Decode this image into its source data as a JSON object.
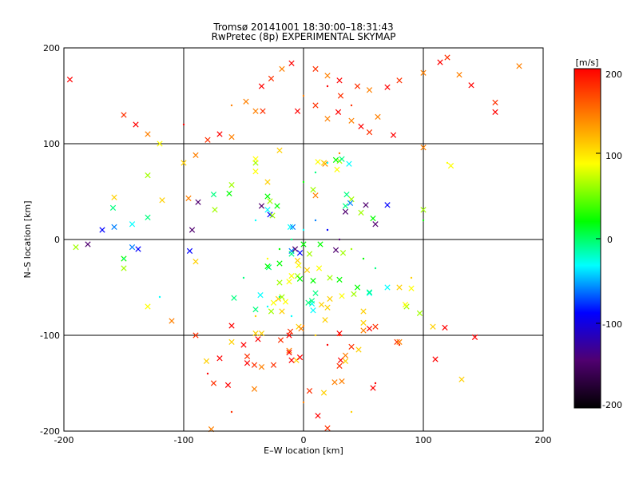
{
  "chart_data": {
    "type": "scatter",
    "title": "Tromsø 20141001 18:30:00–18:31:43",
    "subtitle": "RwPretec (8p) EXPERIMENTAL SKYMAP",
    "xlabel": "E–W location [km]",
    "ylabel": "N–S location [km]",
    "xlim": [
      -200,
      200
    ],
    "ylim": [
      -200,
      200
    ],
    "x_ticks": [
      "-200",
      "-100",
      "0",
      "100",
      "200"
    ],
    "y_ticks": [
      "-200",
      "-100",
      "0",
      "100",
      "200"
    ],
    "grid": true,
    "colorbar": {
      "label": "[m/s]",
      "range": [
        -200,
        200
      ],
      "ticks": [
        "200",
        "100",
        "0",
        "-100",
        "-200"
      ],
      "colormap": [
        "#000000",
        "#500070",
        "#0000ff",
        "#00ffff",
        "#00ff00",
        "#ffff00",
        "#ff8000",
        "#ff0000"
      ]
    },
    "series": [
      {
        "marker": "x",
        "points": [
          [
            -195,
            167
          ],
          [
            -158,
            44
          ],
          [
            -159,
            33
          ],
          [
            -130,
            67
          ],
          [
            -143,
            -8
          ],
          [
            -138,
            -10
          ],
          [
            -93,
            10
          ],
          [
            -74,
            31
          ],
          [
            -50,
            -110
          ],
          [
            -41,
            -131
          ],
          [
            -41,
            -156
          ],
          [
            -30,
            45
          ],
          [
            -28,
            26
          ],
          [
            -25,
            -66
          ],
          [
            -27,
            -75
          ],
          [
            -35,
            -98
          ],
          [
            -38,
            -104
          ],
          [
            -11,
            13
          ],
          [
            -9,
            13
          ],
          [
            -12,
            -44
          ],
          [
            -18,
            -60
          ],
          [
            -19,
            -105
          ],
          [
            -12,
            -116
          ],
          [
            -6,
            -126
          ],
          [
            -3,
            -123
          ],
          [
            -34,
            134
          ],
          [
            -40,
            134
          ],
          [
            -35,
            35
          ],
          [
            -26,
            25
          ],
          [
            -22,
            35
          ],
          [
            -21,
            -62
          ],
          [
            -15,
            -65
          ],
          [
            -12,
            -118
          ],
          [
            8,
            -43
          ],
          [
            10,
            -56
          ],
          [
            7,
            -67
          ],
          [
            15,
            -68
          ],
          [
            28,
            73
          ],
          [
            30,
            82
          ],
          [
            27,
            83
          ],
          [
            32,
            84
          ],
          [
            38,
            79
          ],
          [
            18,
            79
          ],
          [
            17,
            80
          ],
          [
            12,
            81
          ],
          [
            8,
            52
          ],
          [
            7,
            -64
          ],
          [
            18,
            -84
          ],
          [
            30,
            -98
          ],
          [
            40,
            -112
          ],
          [
            35,
            -121
          ],
          [
            50,
            -87
          ],
          [
            55,
            -93
          ],
          [
            60,
            -91
          ],
          [
            50,
            -95
          ],
          [
            60,
            16
          ],
          [
            48,
            28
          ],
          [
            58,
            22
          ],
          [
            35,
            35
          ],
          [
            40,
            42
          ],
          [
            39,
            38
          ],
          [
            36,
            47
          ],
          [
            35,
            29
          ],
          [
            100,
            31
          ],
          [
            110,
            -125
          ],
          [
            123,
            77
          ],
          [
            160,
            133
          ],
          [
            132,
            -146
          ],
          [
            143,
            -102
          ],
          [
            78,
            -107
          ],
          [
            80,
            -107
          ],
          [
            55,
            -56
          ],
          [
            50,
            -75
          ],
          [
            90,
            -51
          ],
          [
            86,
            -70
          ],
          [
            70,
            36
          ],
          [
            52,
            36
          ],
          [
            10,
            46
          ],
          [
            22,
            -62
          ],
          [
            -10,
            -38
          ],
          [
            -10,
            -126
          ],
          [
            -25,
            -131
          ],
          [
            -35,
            -133
          ],
          [
            -60,
            -107
          ],
          [
            -70,
            -124
          ],
          [
            -75,
            -150
          ],
          [
            -77,
            -198
          ],
          [
            -81,
            -127
          ],
          [
            -63,
            -152
          ],
          [
            -95,
            -12
          ],
          [
            -90,
            -23
          ],
          [
            -40,
            -98
          ],
          [
            -20,
            -45
          ],
          [
            -20,
            -25
          ],
          [
            -29,
            -29
          ],
          [
            -10,
            -12
          ],
          [
            -5,
            -22
          ],
          [
            -4,
            -27
          ],
          [
            -5,
            -38
          ],
          [
            -3,
            -41
          ],
          [
            -47,
            -129
          ],
          [
            -47,
            -122
          ],
          [
            -18,
            -75
          ],
          [
            -4,
            -91
          ],
          [
            -12,
            -100
          ],
          [
            -11,
            -96
          ],
          [
            -2,
            -93
          ],
          [
            46,
            -115
          ],
          [
            31,
            -126
          ],
          [
            30,
            -132
          ],
          [
            32,
            -148
          ],
          [
            35,
            -127
          ],
          [
            58,
            -155
          ],
          [
            5,
            -158
          ],
          [
            26,
            -149
          ],
          [
            17,
            -160
          ],
          [
            12,
            -184
          ],
          [
            20,
            -197
          ],
          [
            55,
            -55
          ],
          [
            70,
            -50
          ],
          [
            80,
            -50
          ],
          [
            85,
            -68
          ],
          [
            97,
            -77
          ],
          [
            108,
            -91
          ],
          [
            118,
            -92
          ],
          [
            27,
            -11
          ],
          [
            33,
            -14
          ],
          [
            14,
            -5
          ],
          [
            -10,
            -15
          ],
          [
            -30,
            31
          ],
          [
            -58,
            -61
          ],
          [
            -3,
            -14
          ],
          [
            -7,
            -10
          ],
          [
            5,
            -15
          ],
          [
            0,
            -5
          ],
          [
            -30,
            -28
          ],
          [
            -60,
            -90
          ],
          [
            -90,
            -100
          ],
          [
            -110,
            -85
          ],
          [
            -130,
            -70
          ],
          [
            -150,
            -30
          ],
          [
            -150,
            -20
          ],
          [
            -40,
            -73
          ],
          [
            -36,
            -58
          ],
          [
            3,
            -32
          ],
          [
            13,
            -30
          ],
          [
            22,
            -40
          ],
          [
            30,
            -42
          ],
          [
            4,
            -66
          ],
          [
            8,
            -74
          ],
          [
            20,
            -71
          ],
          [
            32,
            -59
          ],
          [
            42,
            -57
          ],
          [
            45,
            -50
          ],
          [
            -28,
            40
          ],
          [
            -30,
            60
          ],
          [
            -40,
            71
          ],
          [
            -40,
            80
          ],
          [
            -60,
            107
          ],
          [
            -70,
            110
          ],
          [
            -80,
            104
          ],
          [
            -90,
            88
          ],
          [
            -100,
            80
          ],
          [
            -120,
            100
          ],
          [
            -130,
            110
          ],
          [
            -140,
            120
          ],
          [
            -150,
            130
          ],
          [
            -48,
            144
          ],
          [
            -35,
            160
          ],
          [
            -27,
            168
          ],
          [
            -18,
            178
          ],
          [
            -10,
            184
          ],
          [
            10,
            178
          ],
          [
            20,
            171
          ],
          [
            30,
            166
          ],
          [
            45,
            160
          ],
          [
            55,
            156
          ],
          [
            70,
            159
          ],
          [
            80,
            166
          ],
          [
            100,
            174
          ],
          [
            114,
            185
          ],
          [
            120,
            190
          ],
          [
            130,
            172
          ],
          [
            140,
            161
          ],
          [
            160,
            143
          ],
          [
            180,
            181
          ],
          [
            -5,
            134
          ],
          [
            10,
            140
          ],
          [
            20,
            126
          ],
          [
            29,
            133
          ],
          [
            31,
            150
          ],
          [
            40,
            124
          ],
          [
            48,
            118
          ],
          [
            55,
            112
          ],
          [
            62,
            128
          ],
          [
            75,
            109
          ],
          [
            100,
            96
          ],
          [
            -20,
            93
          ],
          [
            -40,
            84
          ],
          [
            -60,
            57
          ],
          [
            -62,
            48
          ],
          [
            -75,
            47
          ],
          [
            -88,
            39
          ],
          [
            -96,
            43
          ],
          [
            -118,
            41
          ],
          [
            -130,
            23
          ],
          [
            -143,
            16
          ],
          [
            -158,
            13
          ],
          [
            -168,
            10
          ],
          [
            -180,
            -5
          ],
          [
            -190,
            -8
          ]
        ]
      },
      {
        "marker": "dot",
        "points": [
          [
            -30,
            -20
          ],
          [
            -20,
            -10
          ],
          [
            -10,
            0
          ],
          [
            0,
            10
          ],
          [
            10,
            20
          ],
          [
            20,
            10
          ],
          [
            30,
            0
          ],
          [
            40,
            -10
          ],
          [
            50,
            -20
          ],
          [
            60,
            -30
          ],
          [
            -10,
            -80
          ],
          [
            0,
            -90
          ],
          [
            10,
            -100
          ],
          [
            20,
            -110
          ],
          [
            30,
            -100
          ],
          [
            -20,
            -60
          ],
          [
            -30,
            -70
          ],
          [
            -40,
            -80
          ],
          [
            0,
            60
          ],
          [
            10,
            70
          ],
          [
            20,
            80
          ],
          [
            30,
            90
          ],
          [
            0,
            150
          ],
          [
            20,
            160
          ],
          [
            40,
            140
          ],
          [
            -60,
            140
          ],
          [
            -100,
            120
          ],
          [
            -150,
            -20
          ],
          [
            -120,
            -60
          ],
          [
            -80,
            -140
          ],
          [
            -60,
            -180
          ],
          [
            0,
            -170
          ],
          [
            40,
            -180
          ],
          [
            60,
            -150
          ],
          [
            80,
            -110
          ],
          [
            90,
            -40
          ],
          [
            100,
            20
          ],
          [
            120,
            80
          ],
          [
            -40,
            20
          ],
          [
            -50,
            -40
          ]
        ]
      }
    ]
  }
}
